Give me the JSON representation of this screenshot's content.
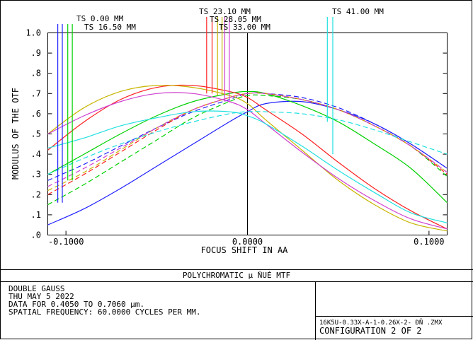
{
  "chart_data": {
    "type": "line",
    "xlabel": "FOCUS SHIFT IN  AA",
    "ylabel": "MODULUS OF THE OTF",
    "xlim": [
      -0.11,
      0.11
    ],
    "ylim": [
      0,
      1.0
    ],
    "x_tick_labels": [
      "-0.1000",
      "0.0000",
      "0.1000"
    ],
    "x_tick_values": [
      -0.1,
      0.0,
      0.1
    ],
    "y_tick_labels": [
      ".0",
      ".1",
      ".2",
      ".3",
      ".4",
      ".5",
      ".6",
      ".7",
      ".8",
      ".9",
      "1.0"
    ],
    "y_tick_values": [
      0.0,
      0.1,
      0.2,
      0.3,
      0.4,
      0.5,
      0.6,
      0.7,
      0.8,
      0.9,
      1.0
    ],
    "field_labels": [
      {
        "text": "TS 0.00 MM",
        "color": "#2020ff"
      },
      {
        "text": "TS 16.50 MM",
        "color": "#00d000"
      },
      {
        "text": "TS 23.10 MM",
        "color": "#ff2020"
      },
      {
        "text": "TS 28.05 MM",
        "color": "#c8b400"
      },
      {
        "text": "TS 33.00 MM",
        "color": "#d040d0"
      },
      {
        "text": "TS 41.00 MM",
        "color": "#20e0e0"
      }
    ],
    "series": [
      {
        "color": "#2020ff",
        "style": "solid",
        "x": [
          -0.11,
          -0.09,
          -0.07,
          -0.05,
          -0.03,
          -0.01,
          0.0,
          0.01,
          0.03,
          0.05,
          0.07,
          0.09,
          0.11
        ],
        "y": [
          0.05,
          0.13,
          0.23,
          0.34,
          0.45,
          0.56,
          0.61,
          0.65,
          0.66,
          0.62,
          0.55,
          0.45,
          0.33
        ]
      },
      {
        "color": "#2020ff",
        "style": "dashed",
        "x": [
          -0.11,
          -0.09,
          -0.07,
          -0.05,
          -0.03,
          -0.01,
          0.0,
          0.01,
          0.03,
          0.05,
          0.07,
          0.09,
          0.11
        ],
        "y": [
          0.27,
          0.35,
          0.44,
          0.53,
          0.61,
          0.67,
          0.7,
          0.7,
          0.68,
          0.63,
          0.55,
          0.45,
          0.33
        ]
      },
      {
        "color": "#00d000",
        "style": "solid",
        "x": [
          -0.11,
          -0.09,
          -0.07,
          -0.05,
          -0.03,
          -0.01,
          0.0,
          0.01,
          0.03,
          0.05,
          0.07,
          0.09,
          0.11
        ],
        "y": [
          0.3,
          0.4,
          0.5,
          0.59,
          0.66,
          0.7,
          0.71,
          0.7,
          0.64,
          0.56,
          0.45,
          0.33,
          0.16
        ]
      },
      {
        "color": "#00d000",
        "style": "dashed",
        "x": [
          -0.11,
          -0.09,
          -0.07,
          -0.05,
          -0.03,
          -0.01,
          0.0,
          0.01,
          0.03,
          0.05,
          0.07,
          0.09,
          0.11
        ],
        "y": [
          0.15,
          0.25,
          0.36,
          0.47,
          0.58,
          0.66,
          0.69,
          0.69,
          0.67,
          0.62,
          0.54,
          0.44,
          0.29
        ]
      },
      {
        "color": "#ff2020",
        "style": "solid",
        "x": [
          -0.11,
          -0.09,
          -0.07,
          -0.05,
          -0.03,
          -0.01,
          0.0,
          0.01,
          0.03,
          0.05,
          0.07,
          0.09,
          0.11
        ],
        "y": [
          0.42,
          0.56,
          0.67,
          0.73,
          0.74,
          0.71,
          0.68,
          0.62,
          0.5,
          0.36,
          0.23,
          0.12,
          0.03
        ]
      },
      {
        "color": "#ff2020",
        "style": "dashed",
        "x": [
          -0.11,
          -0.09,
          -0.07,
          -0.05,
          -0.03,
          -0.01,
          0.0,
          0.01,
          0.03,
          0.05,
          0.07,
          0.09,
          0.11
        ],
        "y": [
          0.2,
          0.3,
          0.41,
          0.52,
          0.62,
          0.68,
          0.7,
          0.7,
          0.67,
          0.62,
          0.54,
          0.44,
          0.3
        ]
      },
      {
        "color": "#c8b400",
        "style": "solid",
        "x": [
          -0.11,
          -0.09,
          -0.07,
          -0.05,
          -0.03,
          -0.01,
          0.0,
          0.01,
          0.03,
          0.05,
          0.07,
          0.09,
          0.11
        ],
        "y": [
          0.5,
          0.63,
          0.71,
          0.74,
          0.73,
          0.69,
          0.65,
          0.57,
          0.42,
          0.27,
          0.15,
          0.06,
          0.02
        ]
      },
      {
        "color": "#c8b400",
        "style": "dashed",
        "x": [
          -0.11,
          -0.09,
          -0.07,
          -0.05,
          -0.03,
          -0.01,
          0.0,
          0.01,
          0.03,
          0.05,
          0.07,
          0.09,
          0.11
        ],
        "y": [
          0.22,
          0.31,
          0.42,
          0.53,
          0.62,
          0.68,
          0.7,
          0.7,
          0.67,
          0.62,
          0.54,
          0.44,
          0.31
        ]
      },
      {
        "color": "#d040d0",
        "style": "solid",
        "x": [
          -0.11,
          -0.09,
          -0.07,
          -0.05,
          -0.03,
          -0.01,
          0.0,
          0.01,
          0.03,
          0.05,
          0.07,
          0.09,
          0.11
        ],
        "y": [
          0.5,
          0.59,
          0.66,
          0.7,
          0.7,
          0.66,
          0.62,
          0.55,
          0.41,
          0.28,
          0.17,
          0.08,
          0.03
        ]
      },
      {
        "color": "#d040d0",
        "style": "dashed",
        "x": [
          -0.11,
          -0.09,
          -0.07,
          -0.05,
          -0.03,
          -0.01,
          0.0,
          0.01,
          0.03,
          0.05,
          0.07,
          0.09,
          0.11
        ],
        "y": [
          0.24,
          0.33,
          0.43,
          0.53,
          0.62,
          0.68,
          0.7,
          0.7,
          0.67,
          0.62,
          0.54,
          0.44,
          0.31
        ]
      },
      {
        "color": "#20e0e0",
        "style": "solid",
        "x": [
          -0.11,
          -0.09,
          -0.07,
          -0.05,
          -0.03,
          -0.01,
          0.0,
          0.01,
          0.03,
          0.05,
          0.07,
          0.09,
          0.11
        ],
        "y": [
          0.43,
          0.48,
          0.54,
          0.58,
          0.61,
          0.61,
          0.59,
          0.55,
          0.44,
          0.32,
          0.21,
          0.11,
          0.06
        ]
      },
      {
        "color": "#20e0e0",
        "style": "dashed",
        "x": [
          -0.11,
          -0.09,
          -0.07,
          -0.05,
          -0.03,
          -0.01,
          0.0,
          0.01,
          0.03,
          0.05,
          0.07,
          0.09,
          0.11
        ],
        "y": [
          0.3,
          0.38,
          0.45,
          0.51,
          0.56,
          0.6,
          0.61,
          0.61,
          0.6,
          0.57,
          0.52,
          0.46,
          0.4
        ]
      }
    ],
    "marker_lines": [
      {
        "color": "#2020ff",
        "x": -0.1045,
        "y_bottom": 0.16
      },
      {
        "color": "#2020ff",
        "x": -0.102,
        "y_bottom": 0.16
      },
      {
        "color": "#00d000",
        "x": -0.099,
        "y_bottom": 0.27
      },
      {
        "color": "#00d000",
        "x": -0.0965,
        "y_bottom": 0.27
      },
      {
        "color": "#ff2020",
        "x": -0.0225,
        "y_bottom": 0.7
      },
      {
        "color": "#ff2020",
        "x": -0.0195,
        "y_bottom": 0.7
      },
      {
        "color": "#c8b400",
        "x": -0.0165,
        "y_bottom": 0.69
      },
      {
        "color": "#c8b400",
        "x": -0.014,
        "y_bottom": 0.69
      },
      {
        "color": "#d040d0",
        "x": -0.0125,
        "y_bottom": 0.66
      },
      {
        "color": "#d040d0",
        "x": -0.01,
        "y_bottom": 0.66
      },
      {
        "color": "#20e0e0",
        "x": 0.044,
        "y_bottom": 0.56
      },
      {
        "color": "#20e0e0",
        "x": 0.047,
        "y_bottom": 0.4
      }
    ]
  },
  "footer": {
    "title": "POLYCHROMATIC        μ ÑUÉ MTF",
    "info_lines": [
      "DOUBLE GAUSS",
      "THU MAY 5 2022",
      "DATA FOR 0.4050 TO 0.7060 μm.",
      "SPATIAL FREQUENCY: 60.0000 CYCLES PER MM."
    ],
    "filename": "16K5U-0.33X-A-1-0.26X-2- ÐÑ    .ZMX",
    "configuration": "CONFIGURATION 2 OF 2"
  }
}
